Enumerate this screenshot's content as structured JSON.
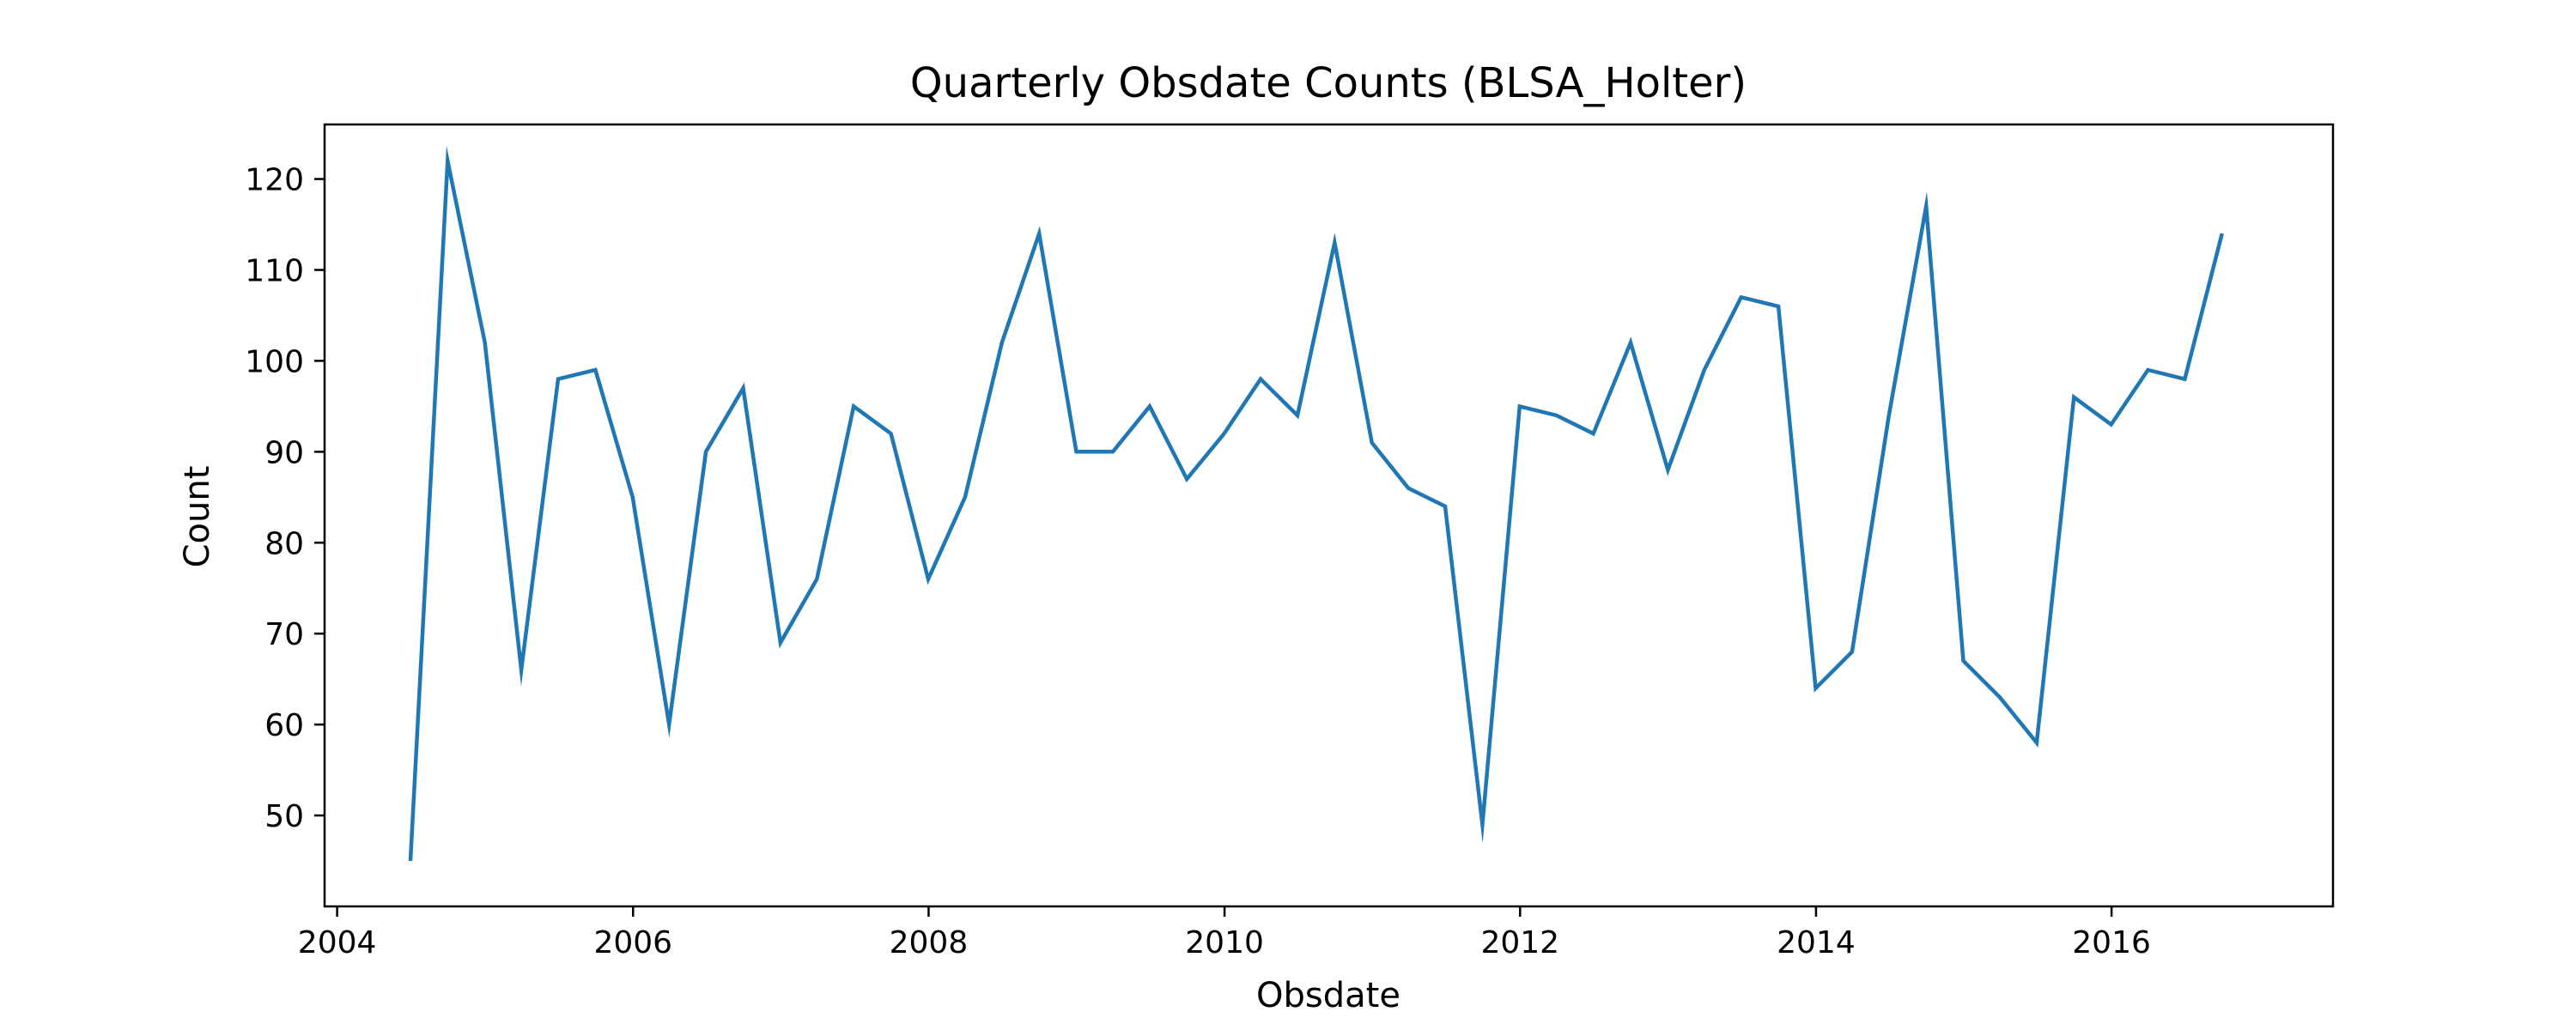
{
  "chart_data": {
    "type": "line",
    "title": "Quarterly Obsdate Counts (BLSA_Holter)",
    "xlabel": "Obsdate",
    "ylabel": "Count",
    "xlim": [
      "2003-12-01",
      "2017-07-01"
    ],
    "ylim": [
      40,
      126
    ],
    "x_ticks": [
      {
        "date": "2004-01-01",
        "label": "2004"
      },
      {
        "date": "2006-01-01",
        "label": "2006"
      },
      {
        "date": "2008-01-01",
        "label": "2008"
      },
      {
        "date": "2010-01-01",
        "label": "2010"
      },
      {
        "date": "2012-01-01",
        "label": "2012"
      },
      {
        "date": "2014-01-01",
        "label": "2014"
      },
      {
        "date": "2016-01-01",
        "label": "2016"
      }
    ],
    "y_ticks": [
      50,
      60,
      70,
      80,
      90,
      100,
      110,
      120
    ],
    "grid": false,
    "color": "#1f77b4",
    "series": [
      {
        "x": [
          "2004-06-30",
          "2004-09-30",
          "2004-12-31",
          "2005-03-31",
          "2005-06-30",
          "2005-09-30",
          "2005-12-31",
          "2006-03-31",
          "2006-06-30",
          "2006-09-30",
          "2006-12-31",
          "2007-03-31",
          "2007-06-30",
          "2007-09-30",
          "2007-12-31",
          "2008-03-31",
          "2008-06-30",
          "2008-09-30",
          "2008-12-31",
          "2009-03-31",
          "2009-06-30",
          "2009-09-30",
          "2009-12-31",
          "2010-03-31",
          "2010-06-30",
          "2010-09-30",
          "2010-12-31",
          "2011-03-31",
          "2011-06-30",
          "2011-09-30",
          "2011-12-31",
          "2012-03-31",
          "2012-06-30",
          "2012-09-30",
          "2012-12-31",
          "2013-03-31",
          "2013-06-30",
          "2013-09-30",
          "2013-12-31",
          "2014-03-31",
          "2014-06-30",
          "2014-09-30",
          "2014-12-31",
          "2015-03-31",
          "2015-06-30",
          "2015-09-30",
          "2015-12-31",
          "2016-03-31",
          "2016-06-30",
          "2016-09-30"
        ],
        "values": [
          45,
          122,
          102,
          66,
          98,
          99,
          85,
          60,
          90,
          97,
          69,
          76,
          95,
          92,
          76,
          85,
          102,
          114,
          90,
          90,
          95,
          87,
          92,
          98,
          94,
          113,
          91,
          86,
          84,
          49,
          95,
          94,
          92,
          102,
          88,
          99,
          107,
          106,
          64,
          68,
          94,
          117,
          67,
          63,
          58,
          96,
          93,
          99,
          98,
          114
        ]
      }
    ]
  }
}
